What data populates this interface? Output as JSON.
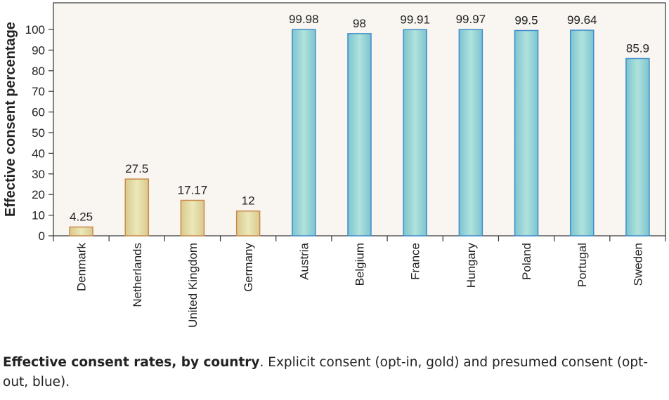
{
  "chart_data": {
    "type": "bar",
    "title": "",
    "xlabel": "",
    "ylabel": "Effective consent percentage",
    "ylim": [
      0,
      100
    ],
    "yticks": [
      0,
      10,
      20,
      30,
      40,
      50,
      60,
      70,
      80,
      90,
      100
    ],
    "categories": [
      "Denmark",
      "Netherlands",
      "United Kingdom",
      "Germany",
      "Austria",
      "Belgium",
      "France",
      "Hungary",
      "Poland",
      "Portugal",
      "Sweden"
    ],
    "values": [
      4.25,
      27.5,
      17.17,
      12,
      99.98,
      98,
      99.91,
      99.97,
      99.5,
      99.64,
      85.9
    ],
    "labels": [
      "4.25",
      "27.5",
      "17.17",
      "12",
      "99.98",
      "98",
      "99.91",
      "99.97",
      "99.5",
      "99.64",
      "85.9"
    ],
    "groups": [
      "opt-in",
      "opt-in",
      "opt-in",
      "opt-in",
      "opt-out",
      "opt-out",
      "opt-out",
      "opt-out",
      "opt-out",
      "opt-out",
      "opt-out"
    ],
    "colors": {
      "opt-in": "#e8e3b0",
      "opt-in-edge": "#c98a4a",
      "opt-out": "#a9ddd8",
      "opt-out-edge": "#3d8ccc",
      "plot_bg": "#f9f5f1"
    },
    "grid": false,
    "legend": "none"
  },
  "caption": {
    "bold": "Effective consent rates, by country",
    "rest": ". Explicit consent (opt-in, gold) and presumed consent (opt-out, blue)."
  }
}
